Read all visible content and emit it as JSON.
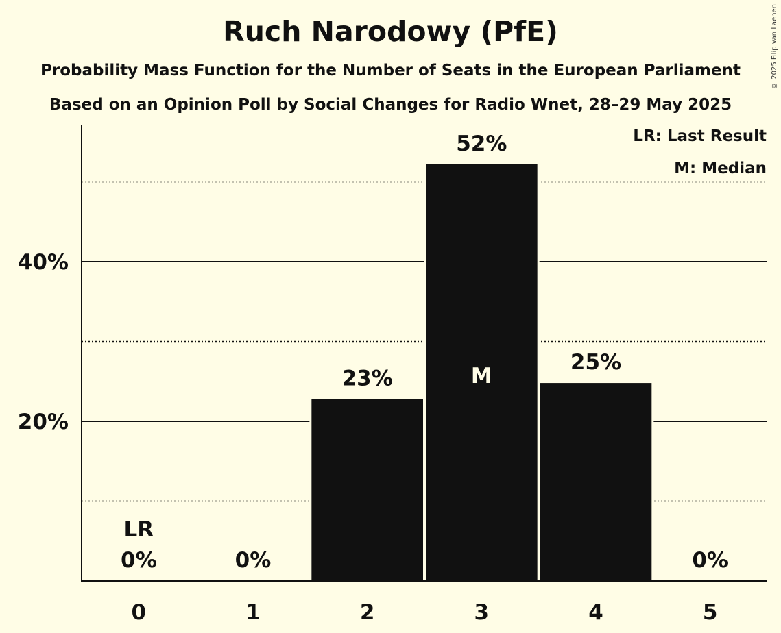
{
  "copyright": "© 2025 Filip van Laenen",
  "legend": {
    "last_result": "LR: Last Result",
    "median": "M: Median"
  },
  "chart_data": {
    "type": "bar",
    "title": "Ruch Narodowy (PfE)",
    "subtitle": "Probability Mass Function for the Number of Seats in the European Parliament",
    "subtitle2": "Based on an Opinion Poll by Social Changes for Radio Wnet, 28–29 May 2025",
    "xlabel": "",
    "ylabel": "",
    "categories": [
      "0",
      "1",
      "2",
      "3",
      "4",
      "5"
    ],
    "values": [
      0,
      0,
      22.8,
      52.2,
      24.8,
      0
    ],
    "data_labels": [
      "0%",
      "0%",
      "23%",
      "52%",
      "25%",
      "0%"
    ],
    "ylim": [
      0,
      57
    ],
    "yticks": [
      20,
      40
    ],
    "ytick_labels": [
      "20%",
      "40%"
    ],
    "minor_gridlines": [
      10,
      30,
      50
    ],
    "last_result_category": "0",
    "last_result_marker": "LR",
    "median_category": "3",
    "median_marker": "M",
    "bar_color": "#111111",
    "background_color": "#fffde6",
    "grid": true,
    "legend_position": "top-right"
  }
}
